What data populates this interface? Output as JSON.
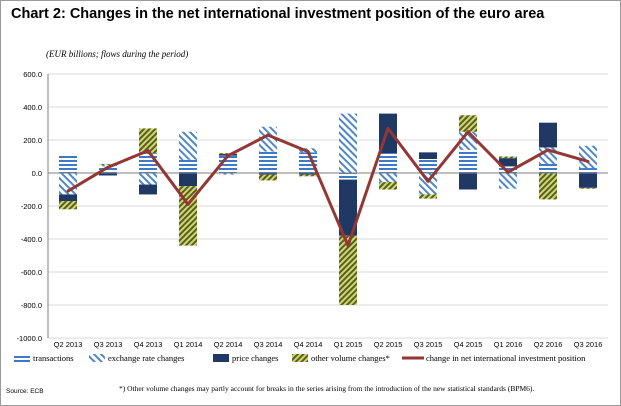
{
  "title": "Chart 2: Changes in the net international investment position of the euro area",
  "subtitle": "(EUR billions; flows during the period)",
  "source": "Source: ECB",
  "footnote": "*) Other volume changes may partly account for breaks in the series arising from the introduction of the new statistical standards (BPM6).",
  "colors": {
    "transactions": "#3f78c4",
    "exchange_rate": "#4e86c8",
    "price": "#1f3864",
    "other_volume": "#4f6228",
    "net_change": "#943634"
  },
  "chart_data": {
    "type": "bar",
    "stacked": true,
    "categories": [
      "Q2 2013",
      "Q3 2013",
      "Q4 2013",
      "Q1 2014",
      "Q2 2014",
      "Q3 2014",
      "Q4 2014",
      "Q1 2015",
      "Q2 2015",
      "Q3 2015",
      "Q4 2015",
      "Q1 2016",
      "Q2 2016",
      "Q3 2016"
    ],
    "ylim": [
      -1000,
      600
    ],
    "yticks": [
      -1000,
      -800,
      -600,
      -400,
      -200,
      0,
      200,
      400,
      600
    ],
    "ytick_labels": [
      "-1000.0",
      "-800.0",
      "-600.0",
      "-400.0",
      "-200.0",
      "0.0",
      "200.0",
      "400.0",
      "600.0"
    ],
    "grid": true,
    "legend_position": "bottom",
    "series": [
      {
        "name": "transactions",
        "type": "bar",
        "pattern": "horizontal-stripes",
        "values": [
          110,
          40,
          120,
          80,
          105,
          130,
          125,
          -40,
          120,
          85,
          140,
          40,
          55,
          30
        ]
      },
      {
        "name": "exchange rate changes",
        "type": "bar",
        "pattern": "diagonal-stripes",
        "values": [
          -130,
          10,
          -70,
          170,
          -10,
          150,
          25,
          360,
          -55,
          -130,
          110,
          -95,
          100,
          135
        ]
      },
      {
        "name": "price changes",
        "type": "bar",
        "pattern": "solid",
        "values": [
          -40,
          -15,
          -60,
          -80,
          10,
          -10,
          -10,
          -340,
          240,
          40,
          -100,
          50,
          150,
          -90
        ]
      },
      {
        "name": "other volume changes*",
        "type": "bar",
        "pattern": "olive-hatch",
        "values": [
          -50,
          5,
          150,
          -360,
          5,
          -35,
          -10,
          -420,
          -45,
          -25,
          100,
          10,
          -160,
          -5
        ]
      },
      {
        "name": "change in net international investment position",
        "type": "line",
        "values": [
          -110,
          35,
          135,
          -190,
          105,
          230,
          130,
          -440,
          270,
          -50,
          250,
          5,
          140,
          70
        ]
      }
    ]
  }
}
